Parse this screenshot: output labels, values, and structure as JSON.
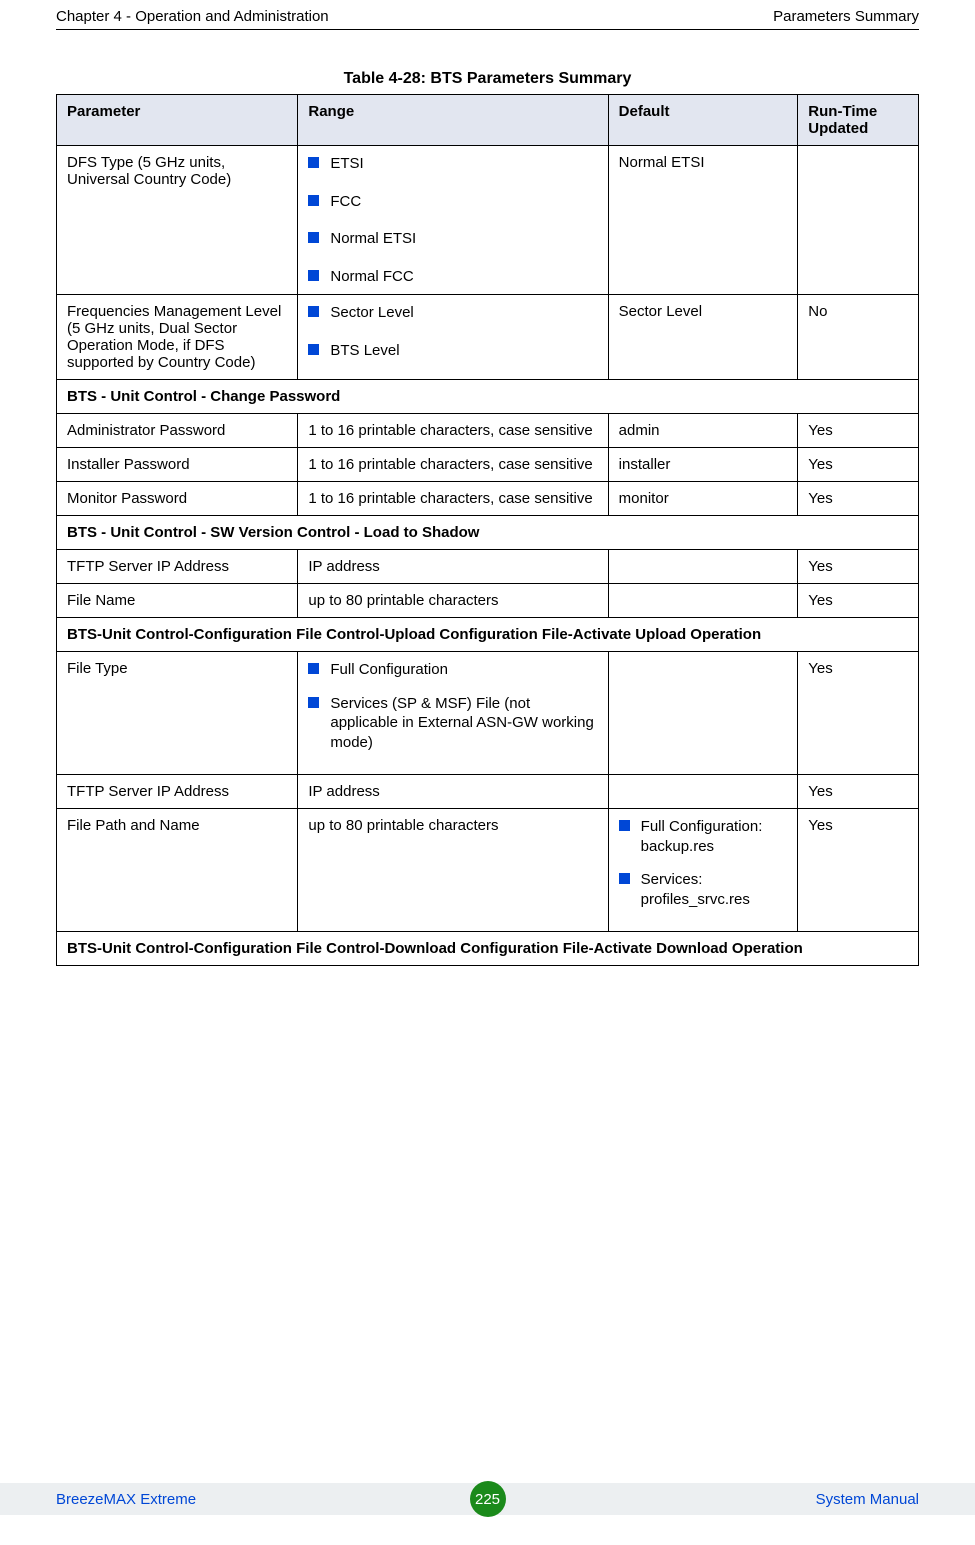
{
  "header": {
    "left": "Chapter 4 - Operation and Administration",
    "right": "Parameters Summary"
  },
  "table": {
    "title": "Table 4-28: BTS Parameters Summary",
    "columns": [
      "Parameter",
      "Range",
      "Default",
      "Run-Time Updated"
    ],
    "header_bg": "#e2e6f0",
    "bullet_color": "#0047d6",
    "rows": {
      "dfs": {
        "param": "DFS Type (5 GHz units, Universal Country Code)",
        "range": [
          "ETSI",
          "FCC",
          "Normal ETSI",
          "Normal FCC"
        ],
        "default": "Normal ETSI",
        "runtime": ""
      },
      "freq": {
        "param": "Frequencies Management Level (5 GHz units, Dual Sector Operation Mode, if DFS supported by Country Code)",
        "range": [
          "Sector Level",
          "BTS Level"
        ],
        "default": "Sector Level",
        "runtime": "No"
      },
      "section_pwd": "BTS - Unit Control - Change Password",
      "admin_pwd": {
        "param": "Administrator Password",
        "range": "1 to 16 printable characters, case sensitive",
        "default": "admin",
        "runtime": "Yes"
      },
      "installer_pwd": {
        "param": "Installer Password",
        "range": "1 to 16 printable characters, case sensitive",
        "default": "installer",
        "runtime": "Yes"
      },
      "monitor_pwd": {
        "param": "Monitor Password",
        "range": "1 to 16 printable characters, case sensitive",
        "default": "monitor",
        "runtime": "Yes"
      },
      "section_sw": "BTS - Unit Control - SW Version Control - Load to Shadow",
      "tftp1": {
        "param": "TFTP Server IP Address",
        "range": "IP address",
        "default": "",
        "runtime": "Yes"
      },
      "filename": {
        "param": "File Name",
        "range": "up to 80 printable characters",
        "default": "",
        "runtime": "Yes"
      },
      "section_upload": "BTS-Unit Control-Configuration File Control-Upload Configuration File-Activate Upload Operation",
      "filetype": {
        "param": "File Type",
        "range": [
          "Full Configuration",
          "Services (SP & MSF) File (not applicable in External ASN-GW working mode)"
        ],
        "default": "",
        "runtime": "Yes"
      },
      "tftp2": {
        "param": "TFTP Server IP Address",
        "range": "IP address",
        "default": "",
        "runtime": "Yes"
      },
      "filepath": {
        "param": "File Path and Name",
        "range": "up to 80 printable characters",
        "default": [
          "Full Configuration: backup.res",
          "Services: profiles_srvc.res"
        ],
        "runtime": "Yes"
      },
      "section_download": "BTS-Unit Control-Configuration File Control-Download Configuration File-Activate Download Operation"
    }
  },
  "footer": {
    "left": "BreezeMAX Extreme",
    "page": "225",
    "right": "System Manual",
    "bg": "#eceff1",
    "link_color": "#0047d6",
    "circle_color": "#1b8a1b"
  }
}
